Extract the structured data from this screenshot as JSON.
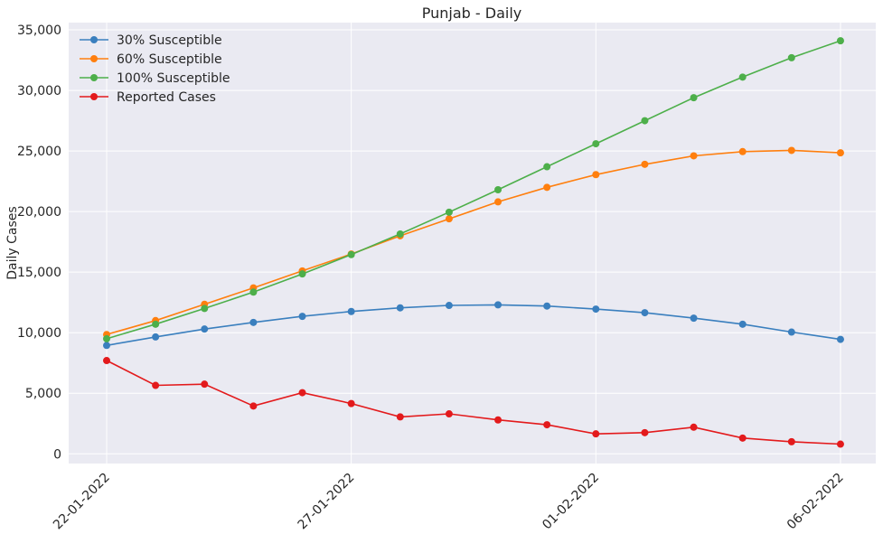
{
  "chart_data": {
    "type": "line",
    "title": "Punjab - Daily",
    "xlabel": "",
    "ylabel": "Daily Cases",
    "x": [
      "22-01-2022",
      "23-01-2022",
      "24-01-2022",
      "25-01-2022",
      "26-01-2022",
      "27-01-2022",
      "28-01-2022",
      "29-01-2022",
      "30-01-2022",
      "31-01-2022",
      "01-02-2022",
      "02-02-2022",
      "03-02-2022",
      "04-02-2022",
      "05-02-2022",
      "06-02-2022"
    ],
    "xticks": [
      "22-01-2022",
      "27-01-2022",
      "01-02-2022",
      "06-02-2022"
    ],
    "yticks": [
      "0",
      "5,000",
      "10,000",
      "15,000",
      "20,000",
      "25,000",
      "30,000",
      "35,000"
    ],
    "ylim": [
      -800,
      35600
    ],
    "grid": true,
    "legend_position": "top-left",
    "series": [
      {
        "name": "30% Susceptible",
        "color": "#3a7fbe",
        "values": [
          8950,
          9650,
          10300,
          10850,
          11350,
          11750,
          12050,
          12250,
          12300,
          12200,
          11950,
          11650,
          11200,
          10700,
          10050,
          9450
        ]
      },
      {
        "name": "60% Susceptible",
        "color": "#ff7f0e",
        "values": [
          9850,
          11000,
          12350,
          13700,
          15100,
          16500,
          18000,
          19400,
          20800,
          22000,
          23050,
          23900,
          24600,
          24950,
          25050,
          24850
        ]
      },
      {
        "name": "100% Susceptible",
        "color": "#4daf4a",
        "values": [
          9500,
          10700,
          12000,
          13350,
          14850,
          16450,
          18150,
          19950,
          21800,
          23700,
          25600,
          27500,
          29400,
          31100,
          32700,
          34100
        ]
      },
      {
        "name": "Reported Cases",
        "color": "#e31a1c",
        "values": [
          7700,
          5650,
          5750,
          3950,
          5050,
          4150,
          3050,
          3300,
          2800,
          2400,
          1650,
          1750,
          2200,
          1300,
          1000,
          800
        ]
      }
    ]
  }
}
